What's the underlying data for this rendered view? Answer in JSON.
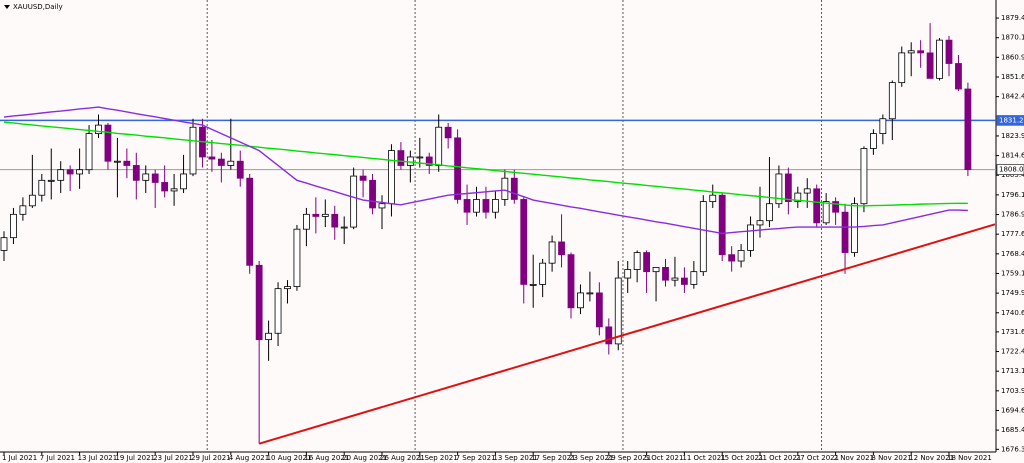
{
  "chart_data": {
    "type": "candlestick",
    "title": "XAUUSD,Daily",
    "categories": [
      "1 Jul 2021",
      null,
      null,
      null,
      "7 Jul 2021",
      null,
      null,
      null,
      "13 Jul 2021",
      null,
      null,
      null,
      "19 Jul 2021",
      null,
      null,
      null,
      "23 Jul 2021",
      null,
      null,
      null,
      "29 Jul 2021",
      null,
      null,
      null,
      "4 Aug 2021",
      null,
      null,
      null,
      "10 Aug 2021",
      null,
      null,
      null,
      "16 Aug 2021",
      null,
      null,
      null,
      "20 Aug 2021",
      null,
      null,
      null,
      "26 Aug 2021",
      null,
      null,
      null,
      "1 Sep 2021",
      null,
      null,
      null,
      "7 Sep 2021",
      null,
      null,
      null,
      "13 Sep 2021",
      null,
      null,
      null,
      "17 Sep 2021",
      null,
      null,
      null,
      "23 Sep 2021",
      null,
      null,
      null,
      "29 Sep 2021",
      null,
      null,
      null,
      "5 Oct 2021",
      null,
      null,
      null,
      "11 Oct 2021",
      null,
      null,
      null,
      "15 Oct 2021",
      null,
      null,
      null,
      "21 Oct 2021",
      null,
      null,
      null,
      "27 Oct 2021",
      null,
      null,
      null,
      "2 Nov 2021",
      null,
      null,
      null,
      "8 Nov 2021",
      null,
      null,
      null,
      "12 Nov 2021",
      null,
      null,
      null,
      "18 Nov 2021",
      null,
      null
    ],
    "candles": {
      "up_color": "#ffffff",
      "down_color": "#800080",
      "open": [
        1770,
        1776,
        1787,
        1791,
        1796,
        1803,
        1803,
        1808,
        1806,
        1808,
        1825,
        1829,
        1812,
        1812,
        1810,
        1803,
        1806,
        1802,
        1798,
        1799,
        1806,
        1828,
        1814,
        1813,
        1810,
        1812,
        1804,
        1763,
        1728,
        1731,
        1752,
        1753,
        1780,
        1787,
        1786,
        1787,
        1781,
        1781,
        1805,
        1803,
        1790,
        1792,
        1817,
        1810,
        1814,
        1814,
        1810,
        1828,
        1823,
        1794,
        1788,
        1794,
        1788,
        1794,
        1804,
        1794,
        1754,
        1754,
        1764,
        1774,
        1768,
        1743,
        1750,
        1750,
        1734,
        1726,
        1757,
        1761,
        1769,
        1760,
        1762,
        1756,
        1757,
        1754,
        1760,
        1793,
        1796,
        1768,
        1765,
        1770,
        1782,
        1784,
        1792,
        1806,
        1793,
        1797,
        1799,
        1783,
        1793,
        1788,
        1769,
        1792,
        1818,
        1825,
        1832,
        1849,
        1863,
        1864,
        1863,
        1851,
        1869,
        1858,
        1846
      ],
      "high": [
        1779,
        1790,
        1795,
        1815,
        1806,
        1818,
        1812,
        1810,
        1818,
        1829,
        1834,
        1830,
        1823,
        1818,
        1816,
        1810,
        1808,
        1810,
        1806,
        1815,
        1832,
        1832,
        1822,
        1816,
        1832,
        1817,
        1806,
        1765,
        1737,
        1755,
        1756,
        1782,
        1790,
        1795,
        1794,
        1791,
        1786,
        1809,
        1808,
        1806,
        1796,
        1820,
        1821,
        1817,
        1823,
        1816,
        1834,
        1830,
        1827,
        1801,
        1800,
        1800,
        1798,
        1808,
        1808,
        1795,
        1768,
        1766,
        1777,
        1787,
        1769,
        1754,
        1760,
        1755,
        1738,
        1765,
        1765,
        1770,
        1770,
        1762,
        1766,
        1767,
        1762,
        1765,
        1796,
        1801,
        1797,
        1772,
        1773,
        1786,
        1800,
        1814,
        1810,
        1809,
        1800,
        1804,
        1801,
        1797,
        1795,
        1792,
        1795,
        1819,
        1827,
        1834,
        1850,
        1866,
        1868,
        1869,
        1877,
        1870,
        1871,
        1862,
        1849
      ],
      "low": [
        1765,
        1773,
        1784,
        1790,
        1793,
        1794,
        1797,
        1798,
        1799,
        1806,
        1823,
        1808,
        1795,
        1804,
        1794,
        1797,
        1790,
        1795,
        1791,
        1797,
        1805,
        1809,
        1807,
        1802,
        1808,
        1800,
        1759,
        1679,
        1718,
        1725,
        1745,
        1751,
        1772,
        1778,
        1781,
        1775,
        1773,
        1780,
        1795,
        1787,
        1780,
        1786,
        1808,
        1802,
        1809,
        1806,
        1807,
        1818,
        1792,
        1782,
        1786,
        1785,
        1785,
        1791,
        1792,
        1745,
        1743,
        1748,
        1760,
        1762,
        1738,
        1740,
        1746,
        1730,
        1721,
        1723,
        1750,
        1755,
        1750,
        1746,
        1753,
        1753,
        1750,
        1752,
        1758,
        1790,
        1765,
        1760,
        1762,
        1767,
        1776,
        1781,
        1790,
        1787,
        1790,
        1790,
        1781,
        1782,
        1782,
        1759,
        1767,
        1788,
        1815,
        1820,
        1822,
        1847,
        1852,
        1856,
        1852,
        1850,
        1852,
        1845,
        1805
      ],
      "close": [
        1776,
        1787,
        1791,
        1796,
        1803,
        1803,
        1808,
        1806,
        1808,
        1825,
        1829,
        1812,
        1812,
        1810,
        1803,
        1806,
        1802,
        1798,
        1799,
        1806,
        1828,
        1814,
        1813,
        1810,
        1812,
        1804,
        1763,
        1728,
        1731,
        1752,
        1753,
        1780,
        1787,
        1786,
        1787,
        1781,
        1781,
        1805,
        1803,
        1790,
        1792,
        1817,
        1810,
        1814,
        1814,
        1810,
        1828,
        1823,
        1794,
        1788,
        1794,
        1788,
        1794,
        1804,
        1794,
        1754,
        1754,
        1764,
        1774,
        1768,
        1743,
        1750,
        1750,
        1734,
        1726,
        1757,
        1761,
        1769,
        1760,
        1762,
        1756,
        1757,
        1754,
        1760,
        1793,
        1796,
        1768,
        1765,
        1770,
        1782,
        1784,
        1792,
        1806,
        1793,
        1797,
        1799,
        1783,
        1793,
        1788,
        1769,
        1792,
        1818,
        1825,
        1832,
        1849,
        1863,
        1864,
        1863,
        1851,
        1869,
        1858,
        1846,
        1808.04
      ]
    },
    "lines": [
      {
        "color": "#00e000",
        "values": [
          1830.4,
          1830.0,
          1829.5,
          1829.1,
          1828.6,
          1828.2,
          1827.8,
          1827.3,
          1826.9,
          1826.5,
          1826.0,
          1825.6,
          1825.1,
          1824.7,
          1824.3,
          1823.8,
          1823.4,
          1823.0,
          1822.5,
          1822.1,
          1821.6,
          1821.2,
          1820.8,
          1820.3,
          1819.9,
          1819.5,
          1819.0,
          1818.6,
          1818.1,
          1817.7,
          1817.3,
          1816.8,
          1816.4,
          1815.9,
          1815.5,
          1815.1,
          1814.6,
          1814.2,
          1813.8,
          1813.3,
          1812.9,
          1812.4,
          1812.0,
          1811.6,
          1811.1,
          1810.7,
          1810.3,
          1809.8,
          1809.4,
          1808.9,
          1808.5,
          1808.1,
          1807.6,
          1807.2,
          1806.7,
          1806.3,
          1805.9,
          1805.4,
          1805.0,
          1804.6,
          1804.1,
          1803.7,
          1803.2,
          1802.8,
          1802.4,
          1801.9,
          1801.5,
          1801.1,
          1800.6,
          1800.2,
          1799.7,
          1799.3,
          1798.9,
          1798.4,
          1798.0,
          1797.5,
          1797.1,
          1796.7,
          1796.2,
          1795.8,
          1795.4,
          1794.9,
          1794.5,
          1794.0,
          1793.6,
          1793.2,
          1792.7,
          1792.3,
          1791.9,
          1791.4,
          1791.0,
          1791.0,
          1791.1,
          1791.2,
          1791.3,
          1791.5,
          1791.6,
          1791.8,
          1791.9,
          1792.0,
          1792.1,
          1792.2,
          1792.2
        ]
      },
      {
        "color": "#8a2be2",
        "values": [
          1832.8,
          1833.3,
          1833.7,
          1834.2,
          1834.7,
          1835.2,
          1835.6,
          1836.1,
          1836.6,
          1837.0,
          1837.5,
          1836.7,
          1836.0,
          1835.2,
          1834.4,
          1833.6,
          1832.9,
          1832.1,
          1831.3,
          1830.5,
          1829.8,
          1829.0,
          1827.0,
          1825.0,
          1823.0,
          1821.0,
          1819.0,
          1817.0,
          1813.5,
          1810.0,
          1806.5,
          1803.0,
          1801.7,
          1800.3,
          1799.0,
          1797.7,
          1796.3,
          1795.0,
          1793.7,
          1793.1,
          1792.6,
          1792.0,
          1791.5,
          1792.4,
          1793.3,
          1794.2,
          1795.1,
          1796.0,
          1796.4,
          1796.8,
          1797.2,
          1797.6,
          1798.0,
          1798.4,
          1796.8,
          1795.3,
          1793.7,
          1792.9,
          1792.1,
          1791.3,
          1790.5,
          1789.8,
          1789.0,
          1788.2,
          1787.4,
          1786.6,
          1785.8,
          1785.1,
          1784.3,
          1783.5,
          1782.8,
          1782.0,
          1781.2,
          1780.4,
          1779.6,
          1778.8,
          1778.0,
          1778.4,
          1778.8,
          1779.2,
          1779.6,
          1780.0,
          1780.3,
          1780.7,
          1781.0,
          1781.0,
          1781.0,
          1781.0,
          1781.0,
          1781.0,
          1781.0,
          1781.3,
          1781.7,
          1782.0,
          1783.0,
          1784.0,
          1785.0,
          1786.0,
          1787.0,
          1788.0,
          1789.0,
          1789.0,
          1788.8
        ]
      }
    ],
    "trendline": {
      "color": "#e01010",
      "values": [
        1679,
        1782.3
      ]
    },
    "levels": [
      {
        "value": 1831.2,
        "label": "1831.20",
        "color": "#3366dd"
      },
      {
        "value": 1808.04,
        "color": "#9a9a9a"
      }
    ],
    "ylim": [
      1675.1,
      1887.9
    ],
    "yticks": [
      {
        "value": 1879.4,
        "label": "1879.40"
      },
      {
        "value": 1870.15,
        "label": "1870.15"
      },
      {
        "value": 1860.9,
        "label": "1860.90"
      },
      {
        "value": 1851.65,
        "label": "1851.65"
      },
      {
        "value": 1842.4,
        "label": "1842.40"
      },
      {
        "value": 1823.9,
        "label": "1823.90"
      },
      {
        "value": 1814.65,
        "label": "1814.65"
      },
      {
        "value": 1805.4,
        "label": "1805.40"
      },
      {
        "value": 1796.15,
        "label": "1796.15"
      },
      {
        "value": 1786.9,
        "label": "1786.90"
      },
      {
        "value": 1777.65,
        "label": "1777.65"
      },
      {
        "value": 1768.4,
        "label": "1768.40"
      },
      {
        "value": 1759.15,
        "label": "1759.15"
      },
      {
        "value": 1749.9,
        "label": "1749.90"
      },
      {
        "value": 1740.65,
        "label": "1740.65"
      },
      {
        "value": 1731.65,
        "label": "1731.65"
      },
      {
        "value": 1722.4,
        "label": "1722.40"
      },
      {
        "value": 1713.15,
        "label": "1713.15"
      },
      {
        "value": 1703.9,
        "label": "1703.90"
      },
      {
        "value": 1694.65,
        "label": "1694.65"
      },
      {
        "value": 1685.4,
        "label": "1685.40"
      },
      {
        "value": 1676.35,
        "label": "1676.35"
      }
    ]
  }
}
